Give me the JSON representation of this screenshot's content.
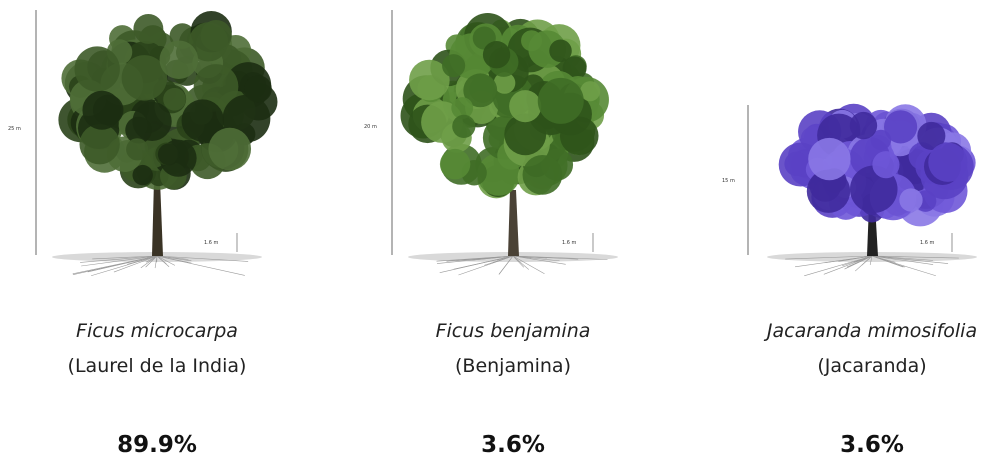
{
  "trees": [
    {
      "scientific_name": "Ficus microcarpa",
      "common_name": "(Laurel de la India)",
      "share": "89.9%",
      "height_label": "25 m",
      "trunk_label": "1.6 m"
    },
    {
      "scientific_name": "Ficus benjamina",
      "common_name": "(Benjamina)",
      "share": "3.6%",
      "height_label": "20 m",
      "trunk_label": "1.6 m"
    },
    {
      "scientific_name": "Jacaranda mimosifolia",
      "common_name": "(Jacaranda)",
      "share": "3.6%",
      "height_label": "15 m",
      "trunk_label": "1.6 m"
    }
  ]
}
